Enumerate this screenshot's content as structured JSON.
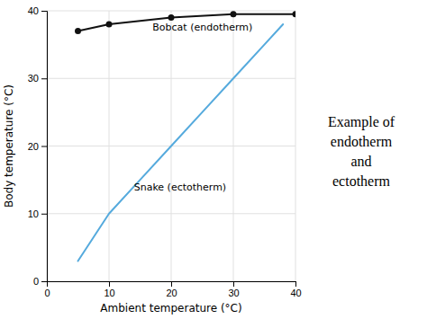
{
  "chart_data": {
    "type": "line",
    "title": "Example of\nendotherm\nand\nectotherm",
    "x_label": "Ambient temperature (°C)",
    "y_label": "Body temperature (°C)",
    "xlim": [
      0,
      40
    ],
    "ylim": [
      0,
      40
    ],
    "xticks": [
      0,
      10,
      20,
      30,
      40
    ],
    "yticks": [
      0,
      10,
      20,
      30,
      40
    ],
    "grid": true,
    "series": [
      {
        "x": [
          5,
          10,
          20,
          30,
          40
        ],
        "values": [
          37.0,
          38.0,
          39.0,
          39.5,
          39.5
        ],
        "color": "#111111",
        "marker": "circle"
      },
      {
        "x": [
          5,
          10,
          15,
          20,
          25,
          30,
          35,
          38
        ],
        "values": [
          3,
          10,
          15,
          20,
          25,
          30,
          35,
          38
        ],
        "color": "#55aadd",
        "marker": "none"
      }
    ],
    "annotations": [
      {
        "text": "Bobcat (endotherm)",
        "x": 17,
        "y": 38.2
      },
      {
        "text": "Snake (ectotherm)",
        "x": 13,
        "y": 14.5
      }
    ]
  }
}
